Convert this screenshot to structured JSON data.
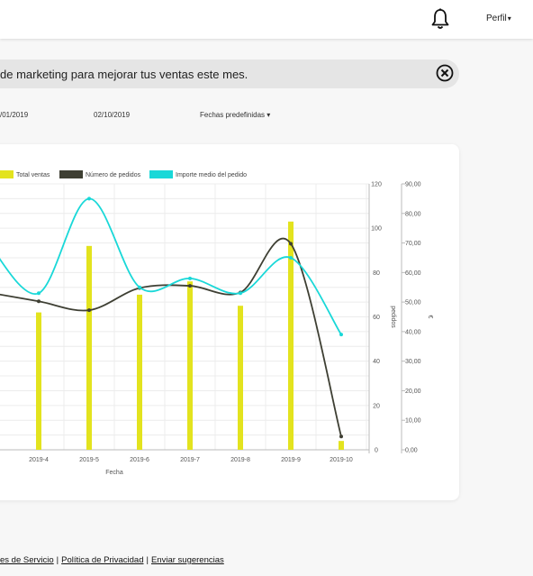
{
  "header": {
    "bell_icon": "bell-icon",
    "profile_label": "Perfil",
    "profile_chevron": "▾"
  },
  "banner": {
    "text": "de marketing para mejorar tus ventas este mes.",
    "close_icon": "close-circle-icon"
  },
  "filters": {
    "date_from": "/01/2019",
    "date_to": "02/10/2019",
    "presets_label": "Fechas predefinidas ▾"
  },
  "footer": {
    "links": [
      {
        "label": "es de Servicio"
      },
      {
        "label": "Política de Privacidad"
      },
      {
        "label": "Enviar sugerencias"
      }
    ],
    "separator": "|"
  },
  "chart_data": {
    "type": "bar",
    "xlabel": "Fecha",
    "categories": [
      "2019-4",
      "2019-5",
      "2019-6",
      "2019-7",
      "2019-8",
      "2019-9",
      "2019-10"
    ],
    "y_left": {
      "label": "pedidos",
      "ticks": [
        "120",
        "100",
        "80",
        "60",
        "40",
        "20",
        "0"
      ],
      "ylim": [
        0,
        120
      ]
    },
    "y_right": {
      "label": "€",
      "ticks": [
        "90,00",
        "80,00",
        "70,00",
        "60,00",
        "50,00",
        "40,00",
        "30,00",
        "20,00",
        "10,00",
        "0,00"
      ],
      "ylim": [
        0,
        90
      ]
    },
    "legend": [
      "Total ventas",
      "Número de pedidos",
      "Importe medio del pedido"
    ],
    "colors": {
      "Total ventas": "#e3e31e",
      "Número de pedidos": "#3e3f33",
      "Importe medio del pedido": "#19d8d8"
    },
    "series": [
      {
        "name": "Total ventas",
        "type": "bar",
        "axis": "left",
        "values": [
          62,
          92,
          70,
          76,
          65,
          103,
          4
        ]
      },
      {
        "name": "Número de pedidos",
        "type": "line",
        "axis": "left",
        "values": [
          67,
          63,
          73,
          74,
          71,
          93,
          6
        ]
      },
      {
        "name": "Importe medio del pedido",
        "type": "line",
        "axis": "right",
        "values": [
          53,
          85,
          55,
          58,
          53,
          65,
          39
        ]
      }
    ]
  }
}
